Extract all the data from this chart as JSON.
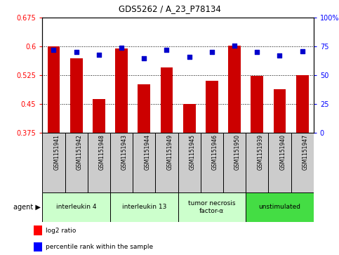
{
  "title": "GDS5262 / A_23_P78134",
  "samples": [
    "GSM1151941",
    "GSM1151942",
    "GSM1151948",
    "GSM1151943",
    "GSM1151944",
    "GSM1151949",
    "GSM1151945",
    "GSM1151946",
    "GSM1151950",
    "GSM1151939",
    "GSM1151940",
    "GSM1151947"
  ],
  "log2_ratio": [
    0.6,
    0.57,
    0.463,
    0.595,
    0.502,
    0.545,
    0.449,
    0.511,
    0.603,
    0.524,
    0.488,
    0.526
  ],
  "percentile_rank": [
    72,
    70,
    68,
    74,
    65,
    72,
    66,
    70,
    76,
    70,
    67,
    71
  ],
  "bar_color": "#cc0000",
  "dot_color": "#0000cc",
  "ylim_left": [
    0.375,
    0.675
  ],
  "ylim_right": [
    0,
    100
  ],
  "yticks_left": [
    0.375,
    0.45,
    0.525,
    0.6,
    0.675
  ],
  "yticks_right": [
    0,
    25,
    50,
    75,
    100
  ],
  "grid_vals": [
    0.45,
    0.525,
    0.6
  ],
  "agent_groups": [
    {
      "label": "interleukin 4",
      "start": 0,
      "end": 3,
      "color": "#ccffcc"
    },
    {
      "label": "interleukin 13",
      "start": 3,
      "end": 6,
      "color": "#ccffcc"
    },
    {
      "label": "tumor necrosis\nfactor-α",
      "start": 6,
      "end": 9,
      "color": "#ccffcc"
    },
    {
      "label": "unstimulated",
      "start": 9,
      "end": 12,
      "color": "#44dd44"
    }
  ],
  "x_bg_color": "#cccccc",
  "legend_bar_label": "log2 ratio",
  "legend_dot_label": "percentile rank within the sample",
  "bar_width": 0.55,
  "base_value": 0.375,
  "fig_width": 4.83,
  "fig_height": 3.63,
  "dpi": 100
}
